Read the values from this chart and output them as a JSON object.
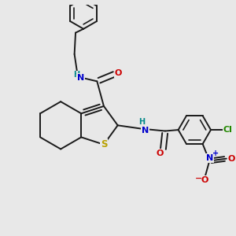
{
  "bg": "#e8e8e8",
  "bc": "#1a1a1a",
  "bw": 1.4,
  "S_color": "#b8a000",
  "O_color": "#cc0000",
  "N_color": "#0000cc",
  "Cl_color": "#228800",
  "xlim": [
    0.0,
    10.0
  ],
  "ylim": [
    0.0,
    10.0
  ],
  "figsize": [
    3.0,
    3.0
  ],
  "dpi": 100
}
